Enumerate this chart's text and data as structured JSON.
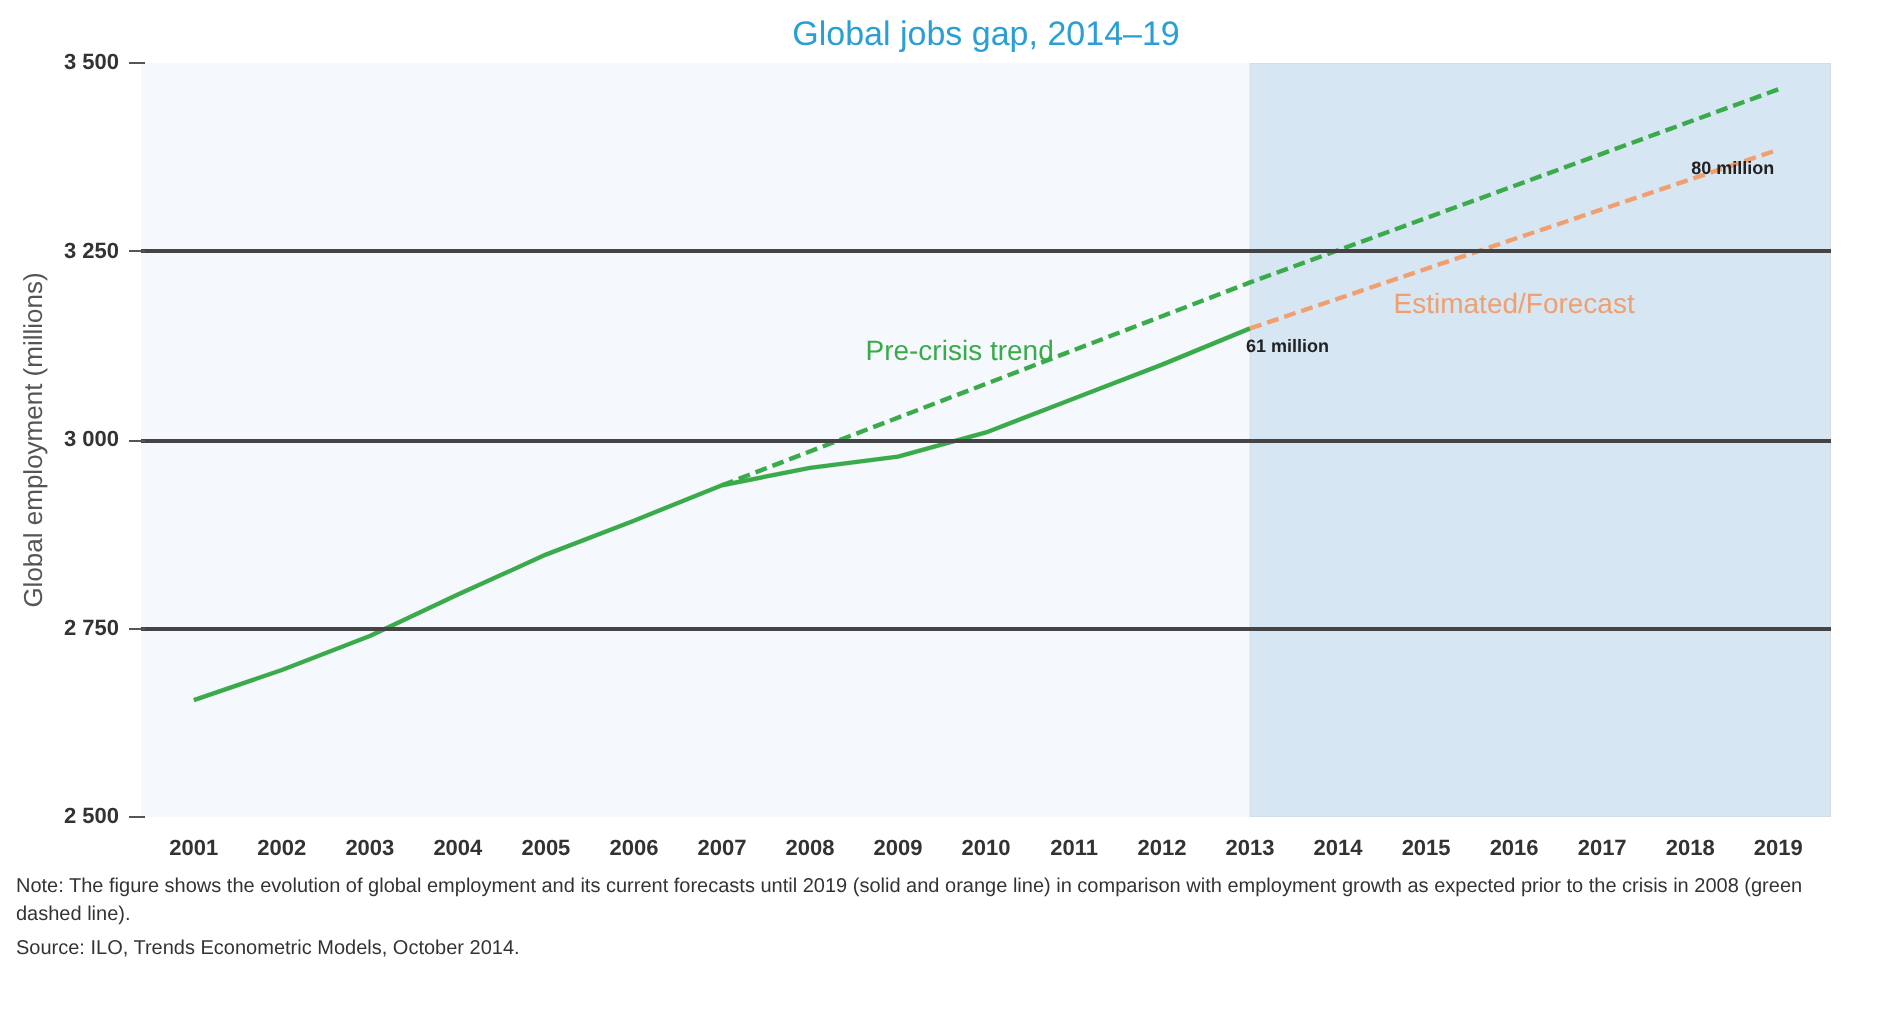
{
  "chart_data": {
    "type": "line",
    "title": "Global jobs gap, 2014–19",
    "ylabel": "Global employment (millions)",
    "xlim": [
      2000.4,
      2019.6
    ],
    "xticks": [
      2001,
      2002,
      2003,
      2004,
      2005,
      2006,
      2007,
      2008,
      2009,
      2010,
      2011,
      2012,
      2013,
      2014,
      2015,
      2016,
      2017,
      2018,
      2019
    ],
    "ylim": [
      2500,
      3500
    ],
    "yticks": [
      {
        "value": 2500,
        "label": "2 500"
      },
      {
        "value": 2750,
        "label": "2 750"
      },
      {
        "value": 3000,
        "label": "3 000"
      },
      {
        "value": 3250,
        "label": "3 250"
      },
      {
        "value": 3500,
        "label": "3 500"
      }
    ],
    "grid": "y",
    "legend": false,
    "bands": [
      {
        "axis": "x",
        "from": 2013,
        "to": 2019.6,
        "color": "#d6e6f3"
      }
    ],
    "series": [
      {
        "color": "#3aaa4a",
        "line_style": "solid",
        "x": [
          2001,
          2002,
          2003,
          2004,
          2005,
          2006,
          2007,
          2008,
          2009,
          2010,
          2011,
          2012,
          2013
        ],
        "values": [
          2655,
          2695,
          2740,
          2795,
          2848,
          2893,
          2940,
          2963,
          2978,
          3010,
          3055,
          3100,
          3148
        ]
      },
      {
        "name": "Pre-crisis trend",
        "color": "#3aaa4a",
        "line_style": "dashed",
        "x": [
          2007,
          2013,
          2019
        ],
        "values": [
          2940,
          3209,
          3465
        ]
      },
      {
        "name": "Estimated/Forecast",
        "color": "#f0a070",
        "line_style": "dashed",
        "x": [
          2013,
          2019
        ],
        "values": [
          3148,
          3385
        ]
      }
    ],
    "annotations": [
      {
        "text": "61 million",
        "x": 2013,
        "y": 3148
      },
      {
        "text": "80 million",
        "x": 2019,
        "y": 3385
      },
      "Note: The figure shows the evolution of global employment and its current forecasts until 2019 (solid and orange line) in comparison with employment growth as expected prior to the crisis in 2008 (green dashed line).",
      "Source: ILO, Trends Econometric Models, October 2014."
    ]
  }
}
